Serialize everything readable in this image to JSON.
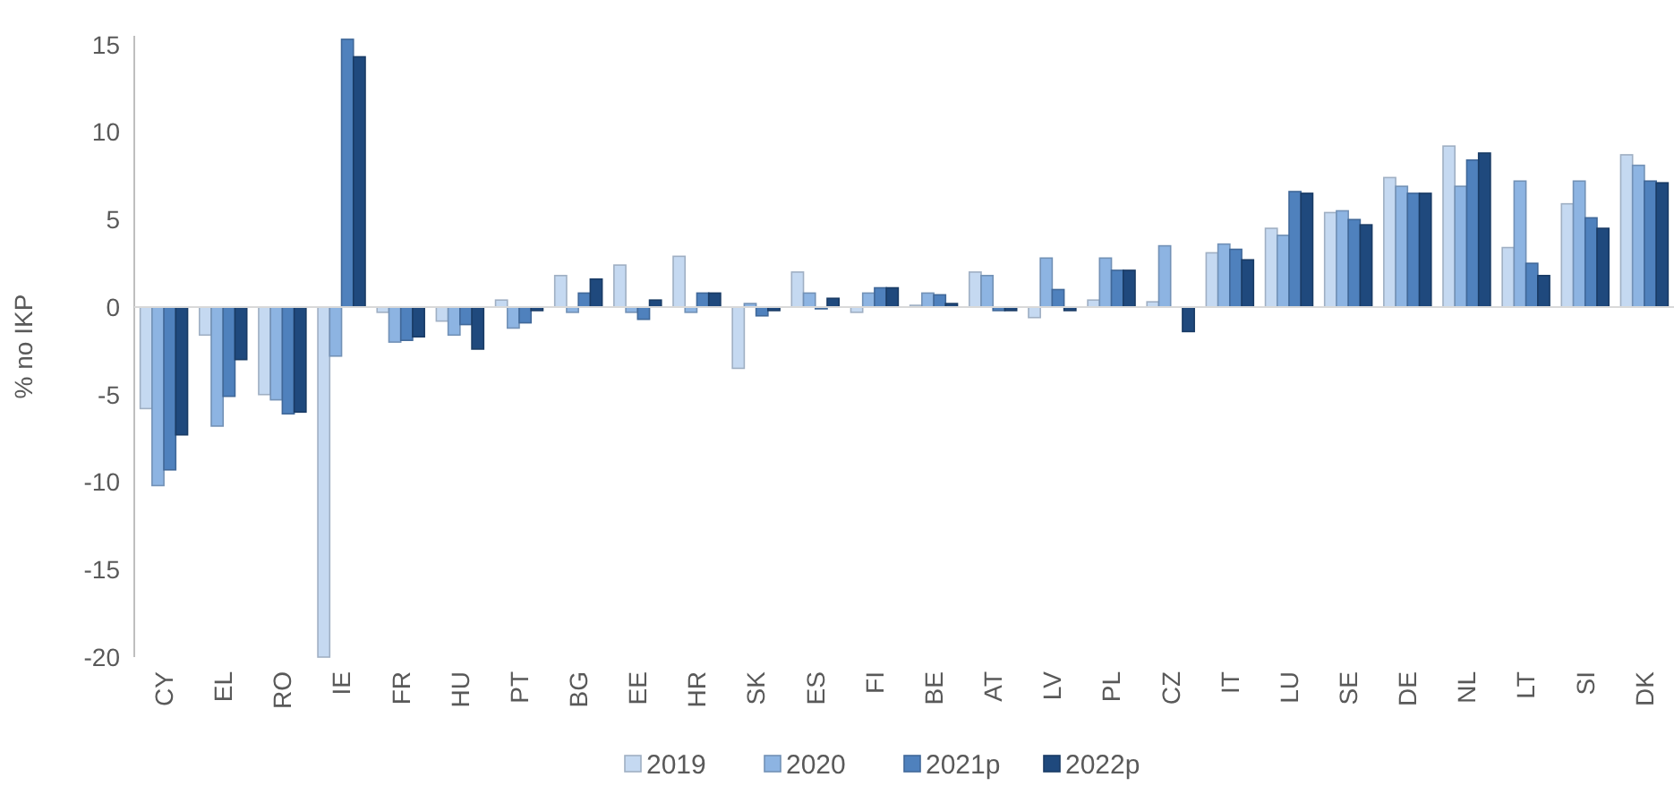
{
  "chart_data": {
    "type": "bar",
    "ylabel": "% no IKP",
    "categories": [
      "CY",
      "EL",
      "RO",
      "IE",
      "FR",
      "HU",
      "PT",
      "BG",
      "EE",
      "HR",
      "SK",
      "ES",
      "FI",
      "BE",
      "AT",
      "LV",
      "PL",
      "CZ",
      "IT",
      "LU",
      "SE",
      "DE",
      "NL",
      "LT",
      "SI",
      "DK"
    ],
    "series": [
      {
        "name": "2019",
        "color": "#c5d9f1",
        "values": [
          -5.8,
          -1.6,
          -5.0,
          -20,
          -0.3,
          -0.8,
          0.4,
          1.8,
          2.4,
          2.9,
          -3.5,
          2.0,
          -0.3,
          0.1,
          2.0,
          -0.6,
          0.4,
          0.3,
          3.1,
          4.5,
          5.4,
          7.4,
          9.2,
          3.4,
          5.9,
          8.7
        ]
      },
      {
        "name": "2020",
        "color": "#8db4e2",
        "values": [
          -10.2,
          -6.8,
          -5.3,
          -2.8,
          -2.0,
          -1.6,
          -1.2,
          -0.3,
          -0.3,
          -0.3,
          0.2,
          0.8,
          0.8,
          0.8,
          1.8,
          2.8,
          2.8,
          3.5,
          3.6,
          4.1,
          5.5,
          6.9,
          6.9,
          7.2,
          7.2,
          8.1
        ]
      },
      {
        "name": "2021p",
        "color": "#4f81bd",
        "values": [
          -9.3,
          -5.1,
          -6.1,
          15.3,
          -1.9,
          -1.0,
          -0.9,
          0.8,
          -0.7,
          0.8,
          -0.5,
          -0.1,
          1.1,
          0.7,
          -0.2,
          1.0,
          2.1,
          0.0,
          3.3,
          6.6,
          5.0,
          6.5,
          8.4,
          2.5,
          5.1,
          7.2
        ]
      },
      {
        "name": "2022p",
        "color": "#1f497d",
        "values": [
          -7.3,
          -3.0,
          -6.0,
          14.3,
          -1.7,
          -2.4,
          -0.2,
          1.6,
          0.4,
          0.8,
          -0.2,
          0.5,
          1.1,
          0.2,
          -0.2,
          -0.2,
          2.1,
          -1.4,
          2.7,
          6.5,
          4.7,
          6.5,
          8.8,
          1.8,
          4.5,
          7.1
        ]
      }
    ],
    "ylim": [
      -20,
      15.5
    ],
    "yticks": [
      -20,
      -15,
      -10,
      -5,
      0,
      5,
      10,
      15
    ],
    "legend": "bottom"
  }
}
